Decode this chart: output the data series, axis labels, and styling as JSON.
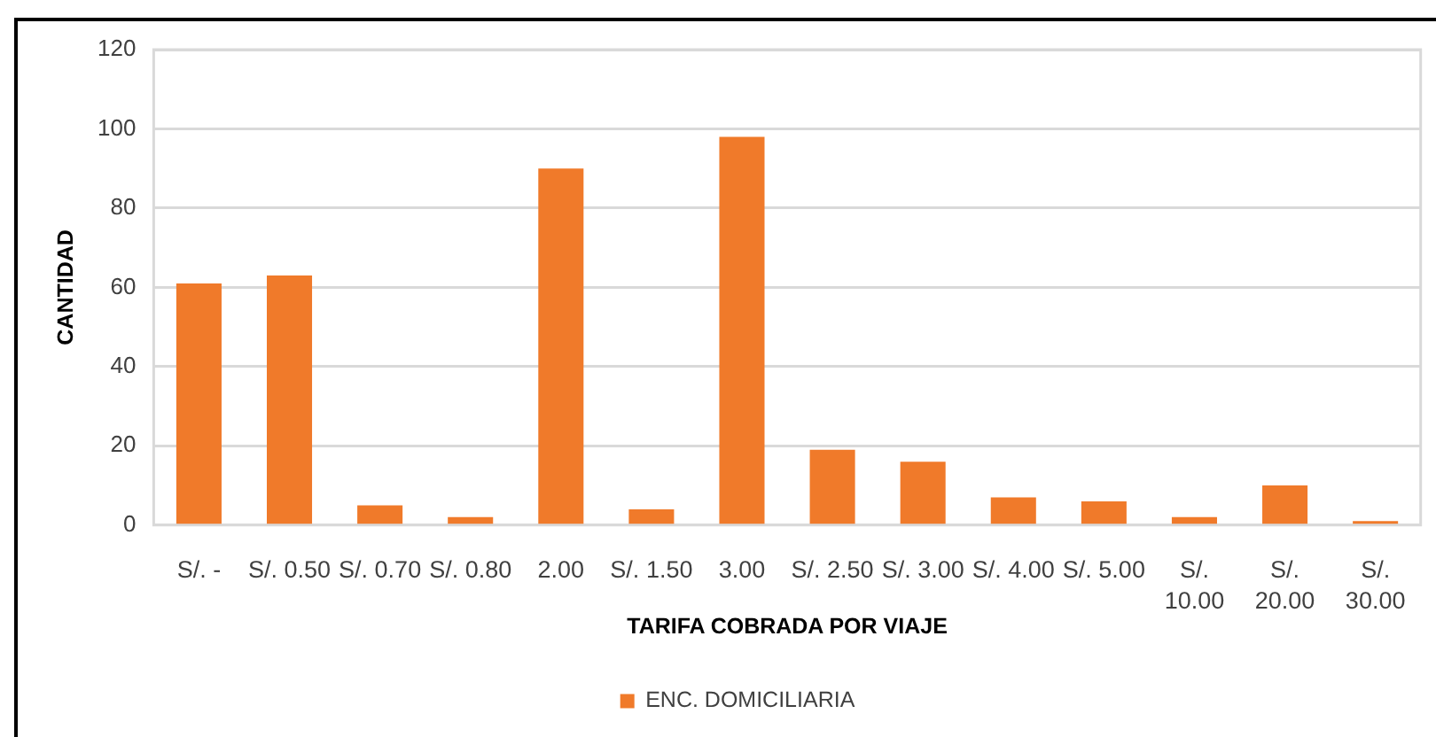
{
  "chart_data": {
    "type": "bar",
    "categories": [
      "S/. -",
      "S/. 0.50",
      "S/. 0.70",
      "S/. 0.80",
      "2.00",
      "S/. 1.50",
      "3.00",
      "S/. 2.50",
      "S/. 3.00",
      "S/. 4.00",
      "S/. 5.00",
      "S/. 10.00",
      "S/. 20.00",
      "S/. 30.00"
    ],
    "series": [
      {
        "name": "ENC. DOMICILIARIA",
        "color": "#f07a2a",
        "values": [
          61,
          63,
          5,
          2,
          90,
          4,
          98,
          19,
          16,
          7,
          6,
          2,
          10,
          1
        ]
      }
    ],
    "xlabel": "TARIFA COBRADA POR VIAJE",
    "ylabel": "CANTIDAD",
    "ylim": [
      0,
      120
    ],
    "yticks": [
      0,
      20,
      40,
      60,
      80,
      100,
      120
    ],
    "grid": "y",
    "legend": "bottom"
  }
}
